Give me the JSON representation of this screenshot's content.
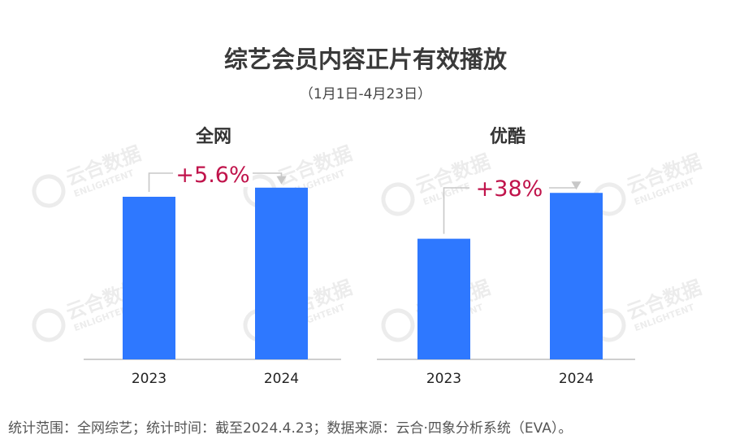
{
  "title": "综艺会员内容正片有效播放",
  "subtitle": "（1月1日-4月23日）",
  "footnote": "统计范围：全网综艺；统计时间：截至2024.4.23；数据来源：云合·四象分析系统（EVA）。",
  "watermark": {
    "brand": "云合数据",
    "brand_en": "ENLIGHTENT"
  },
  "colors": {
    "bar": "#2E78FF",
    "change_label": "#C0134B",
    "connector": "#c8c8c8",
    "axis": "#bfbfbf"
  },
  "chart_data": [
    {
      "type": "bar",
      "title": "全网",
      "categories": [
        "2023",
        "2024"
      ],
      "values": [
        100,
        105.6
      ],
      "ylim": [
        0,
        115
      ],
      "annotation": "+5.6%",
      "grid": false
    },
    {
      "type": "bar",
      "title": "优酷",
      "categories": [
        "2023",
        "2024"
      ],
      "values": [
        100,
        138
      ],
      "ylim": [
        0,
        155
      ],
      "annotation": "+38%",
      "grid": false
    }
  ]
}
